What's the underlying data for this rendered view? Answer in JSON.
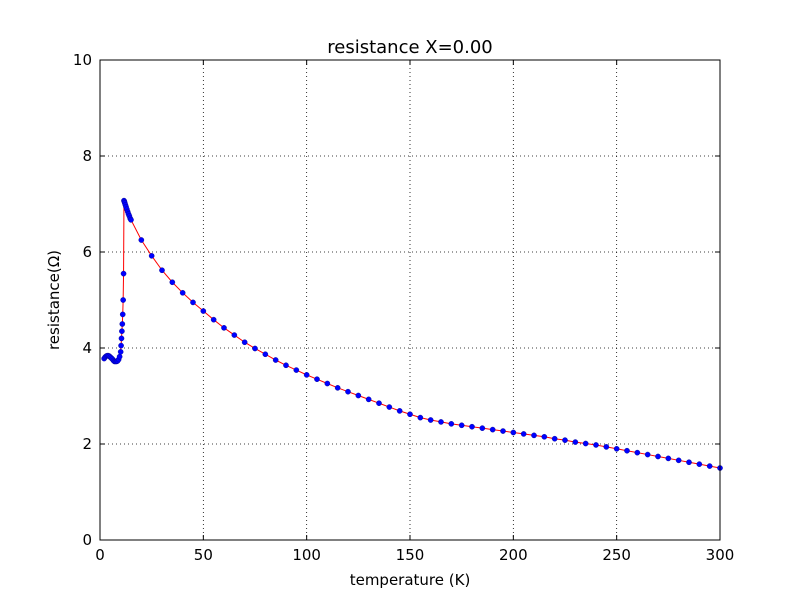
{
  "chart_data": {
    "type": "line",
    "title": "resistance X=0.00",
    "xlabel": "temperature (K)",
    "ylabel": "resistance(Ω)",
    "xlim": [
      0,
      300
    ],
    "ylim": [
      0,
      10
    ],
    "xticks": [
      0,
      50,
      100,
      150,
      200,
      250,
      300
    ],
    "yticks": [
      0,
      2,
      4,
      6,
      8,
      10
    ],
    "grid": true,
    "line_color": "#ff0000",
    "marker_color": "#0000ff",
    "series": [
      {
        "x": [
          2,
          2.5,
          3,
          3.5,
          4,
          4.5,
          5,
          5.5,
          6,
          6.5,
          7,
          7.5,
          8,
          8.5,
          9,
          9.5,
          10,
          10.2,
          10.4,
          10.6,
          10.8,
          11,
          11.2,
          11.4,
          11.6,
          11.8,
          12,
          12.3,
          12.6,
          13,
          13.4,
          13.8,
          14.2,
          14.6,
          15,
          20,
          25,
          30,
          35,
          40,
          45,
          50,
          55,
          60,
          65,
          70,
          75,
          80,
          85,
          90,
          95,
          100,
          105,
          110,
          115,
          120,
          125,
          130,
          135,
          140,
          145,
          150,
          155,
          160,
          165,
          170,
          175,
          180,
          185,
          190,
          195,
          200,
          205,
          210,
          215,
          220,
          225,
          230,
          235,
          240,
          245,
          250,
          255,
          260,
          265,
          270,
          275,
          280,
          285,
          290,
          295,
          300
        ],
        "values": [
          3.78,
          3.81,
          3.83,
          3.84,
          3.84,
          3.83,
          3.81,
          3.79,
          3.77,
          3.74,
          3.72,
          3.72,
          3.72,
          3.73,
          3.76,
          3.82,
          3.92,
          4.05,
          4.2,
          4.35,
          4.5,
          4.7,
          5.0,
          5.55,
          7.07,
          7.05,
          7.02,
          6.98,
          6.94,
          6.89,
          6.84,
          6.79,
          6.75,
          6.7,
          6.67,
          6.25,
          5.92,
          5.62,
          5.37,
          5.15,
          4.95,
          4.77,
          4.59,
          4.42,
          4.27,
          4.12,
          3.99,
          3.87,
          3.75,
          3.64,
          3.54,
          3.44,
          3.35,
          3.26,
          3.17,
          3.09,
          3.01,
          2.93,
          2.85,
          2.77,
          2.69,
          2.62,
          2.55,
          2.5,
          2.46,
          2.42,
          2.39,
          2.36,
          2.33,
          2.3,
          2.27,
          2.24,
          2.21,
          2.18,
          2.15,
          2.11,
          2.08,
          2.04,
          2.01,
          1.98,
          1.94,
          1.9,
          1.86,
          1.82,
          1.78,
          1.74,
          1.7,
          1.66,
          1.62,
          1.58,
          1.54,
          1.5
        ]
      }
    ]
  }
}
